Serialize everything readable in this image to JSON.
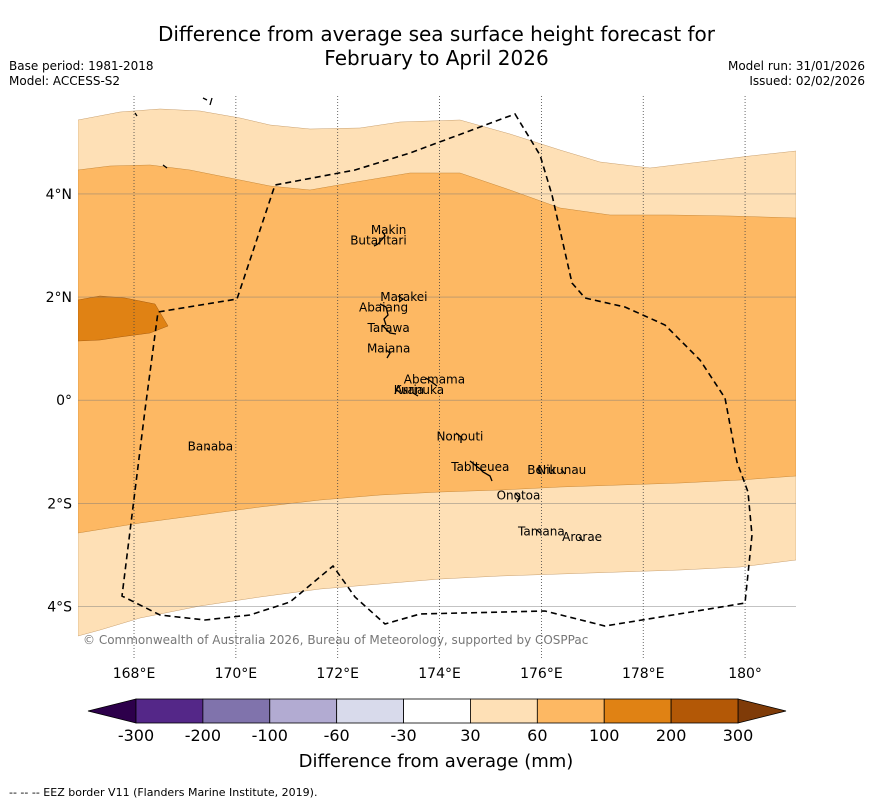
{
  "title": {
    "line1": "Difference from average sea surface height forecast for",
    "line2": "February to April 2026"
  },
  "meta": {
    "base_period": "Base period: 1981-2018",
    "model": "Model: ACCESS-S2",
    "model_run": "Model run: 31/01/2026",
    "issued": "Issued: 02/02/2026"
  },
  "axes": {
    "lon_ticks": [
      {
        "value": 168,
        "label": "168°E"
      },
      {
        "value": 170,
        "label": "170°E"
      },
      {
        "value": 172,
        "label": "172°E"
      },
      {
        "value": 174,
        "label": "174°E"
      },
      {
        "value": 176,
        "label": "176°E"
      },
      {
        "value": 178,
        "label": "178°E"
      },
      {
        "value": 180,
        "label": "180°"
      }
    ],
    "lat_ticks": [
      {
        "value": 4,
        "label": "4°N"
      },
      {
        "value": 2,
        "label": "2°N"
      },
      {
        "value": 0,
        "label": "0°"
      },
      {
        "value": -2,
        "label": "2°S"
      },
      {
        "value": -4,
        "label": "4°S"
      }
    ],
    "lon_range": [
      166.9,
      181.0
    ],
    "lat_range": [
      -5.0,
      5.9
    ]
  },
  "places": [
    {
      "name": "Makin",
      "lon": 173.0,
      "lat": 3.3
    },
    {
      "name": "Butaritari",
      "lon": 172.8,
      "lat": 3.1
    },
    {
      "name": "Marakei",
      "lon": 173.3,
      "lat": 2.0
    },
    {
      "name": "Abaiang",
      "lon": 172.9,
      "lat": 1.8
    },
    {
      "name": "Tarawa",
      "lon": 173.0,
      "lat": 1.4
    },
    {
      "name": "Maiana",
      "lon": 173.0,
      "lat": 1.0
    },
    {
      "name": "Abemama",
      "lon": 173.9,
      "lat": 0.4
    },
    {
      "name": "Kuria",
      "lon": 173.4,
      "lat": 0.2
    },
    {
      "name": "Aranuka",
      "lon": 173.6,
      "lat": 0.2
    },
    {
      "name": "Banaba",
      "lon": 169.5,
      "lat": -0.9
    },
    {
      "name": "Nonouti",
      "lon": 174.4,
      "lat": -0.7
    },
    {
      "name": "Tabiteuea",
      "lon": 174.8,
      "lat": -1.3
    },
    {
      "name": "Beru",
      "lon": 176.0,
      "lat": -1.35
    },
    {
      "name": "Nikunau",
      "lon": 176.4,
      "lat": -1.35
    },
    {
      "name": "Onotoa",
      "lon": 175.55,
      "lat": -1.85
    },
    {
      "name": "Tamana",
      "lon": 176.0,
      "lat": -2.55
    },
    {
      "name": "Arorae",
      "lon": 176.8,
      "lat": -2.65
    }
  ],
  "copyright": "© Commonwealth of Australia 2026, Bureau of Meteorology, supported by COSPPac",
  "colorbar": {
    "label": "Difference from average (mm)",
    "ticks": [
      "-300",
      "-200",
      "-100",
      "-60",
      "-30",
      "30",
      "60",
      "100",
      "200",
      "300"
    ],
    "low_color": "#2d004b",
    "high_color": "#7f3b08",
    "bins": [
      {
        "from": -300,
        "to": -200,
        "color": "#542788"
      },
      {
        "from": -200,
        "to": -100,
        "color": "#8073ac"
      },
      {
        "from": -100,
        "to": -60,
        "color": "#b2abd2"
      },
      {
        "from": -60,
        "to": -30,
        "color": "#d8daeb"
      },
      {
        "from": -30,
        "to": 30,
        "color": "#ffffff"
      },
      {
        "from": 30,
        "to": 60,
        "color": "#fee0b6"
      },
      {
        "from": 60,
        "to": 100,
        "color": "#fdb863"
      },
      {
        "from": 100,
        "to": 200,
        "color": "#e08214"
      },
      {
        "from": 200,
        "to": 300,
        "color": "#b35806"
      }
    ]
  },
  "footnote": "--  --  -- EEZ border V11 (Flanders Marine Institute, 2019)."
}
